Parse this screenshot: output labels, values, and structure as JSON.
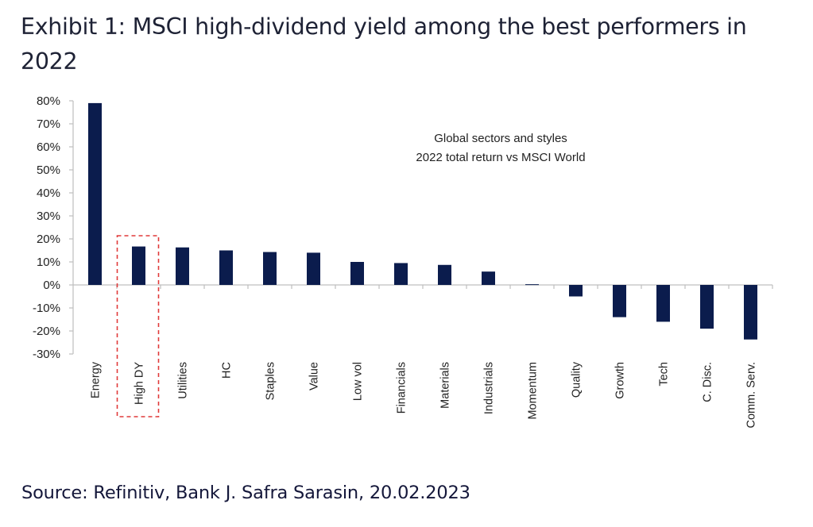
{
  "title": "Exhibit 1: MSCI high-dividend yield among the best performers in 2022",
  "source": "Source: Refinitiv, Bank J. Safra Sarasin, 20.02.2023",
  "colors": {
    "bar": "#0b1c4d",
    "axis": "#bfbfbf",
    "highlight_box": "#e03a3a",
    "title": "#1e2235"
  },
  "chart_data": {
    "type": "bar",
    "title": "",
    "annotation": [
      "Global sectors and styles",
      "2022 total return vs MSCI World"
    ],
    "xlabel": "",
    "ylabel": "",
    "categories": [
      "Energy",
      "High DY",
      "Utilities",
      "HC",
      "Staples",
      "Value",
      "Low vol",
      "Financials",
      "Materials",
      "Industrials",
      "Momentum",
      "Quality",
      "Growth",
      "Tech",
      "C. Disc.",
      "Comm. Serv."
    ],
    "values": [
      79,
      16.7,
      16.3,
      15,
      14.3,
      14,
      10,
      9.5,
      8.7,
      5.8,
      0.3,
      -5,
      -14,
      -16,
      -19,
      -23.7
    ],
    "unit": "%",
    "ylim": [
      -30,
      80
    ],
    "yticks": [
      80,
      70,
      60,
      50,
      40,
      30,
      20,
      10,
      0,
      -10,
      -20,
      -30
    ],
    "ytick_labels": [
      "80%",
      "70%",
      "60%",
      "50%",
      "40%",
      "30%",
      "20%",
      "10%",
      "0%",
      "-10%",
      "-20%",
      "-30%"
    ],
    "highlighted_category": "High DY",
    "grid": false,
    "legend": "none"
  }
}
